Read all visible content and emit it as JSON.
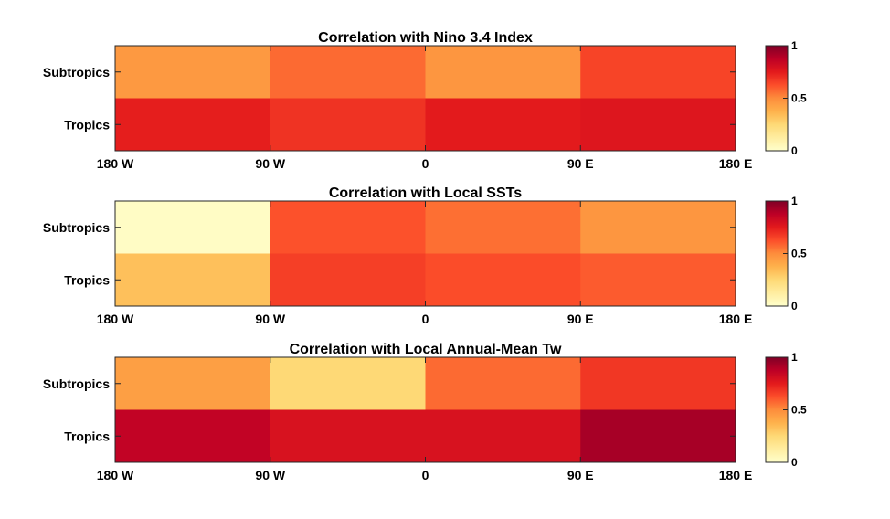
{
  "chart_data": [
    {
      "type": "heatmap",
      "title": "Correlation with Nino 3.4 Index",
      "x_tick_labels": [
        "180 W",
        "90 W",
        "0",
        "90 E",
        "180 E"
      ],
      "y_categories": [
        "Subtropics",
        "Tropics"
      ],
      "x_bins": [
        "180 W-90 W",
        "90 W-0",
        "0-90 E",
        "90 E-180 E"
      ],
      "values": [
        [
          0.46,
          0.57,
          0.47,
          0.65
        ],
        [
          0.74,
          0.69,
          0.75,
          0.77
        ]
      ],
      "colorbar": {
        "min": 0,
        "max": 1,
        "ticks": [
          "0",
          "0.5",
          "1"
        ]
      }
    },
    {
      "type": "heatmap",
      "title": "Correlation with Local SSTs",
      "x_tick_labels": [
        "180 W",
        "90 W",
        "0",
        "90 E",
        "180 E"
      ],
      "y_categories": [
        "Subtropics",
        "Tropics"
      ],
      "x_bins": [
        "180 W-90 W",
        "90 W-0",
        "0-90 E",
        "90 E-180 E"
      ],
      "values": [
        [
          0.02,
          0.62,
          0.56,
          0.47
        ],
        [
          0.33,
          0.66,
          0.63,
          0.6
        ]
      ],
      "colorbar": {
        "min": 0,
        "max": 1,
        "ticks": [
          "0",
          "0.5",
          "1"
        ]
      }
    },
    {
      "type": "heatmap",
      "title": "Correlation with Local Annual-Mean Tw",
      "x_tick_labels": [
        "180 W",
        "90 W",
        "0",
        "90 E",
        "180 E"
      ],
      "y_categories": [
        "Subtropics",
        "Tropics"
      ],
      "x_bins": [
        "180 W-90 W",
        "90 W-0",
        "0-90 E",
        "90 E-180 E"
      ],
      "values": [
        [
          0.44,
          0.25,
          0.57,
          0.68
        ],
        [
          0.86,
          0.79,
          0.79,
          0.92
        ]
      ],
      "colorbar": {
        "min": 0,
        "max": 1,
        "ticks": [
          "0",
          "0.5",
          "1"
        ]
      }
    }
  ],
  "colormap": [
    "#ffffcc",
    "#ffeda0",
    "#fed976",
    "#feb24c",
    "#fd8d3c",
    "#fc4e2a",
    "#e31a1c",
    "#bd0026",
    "#800026"
  ]
}
